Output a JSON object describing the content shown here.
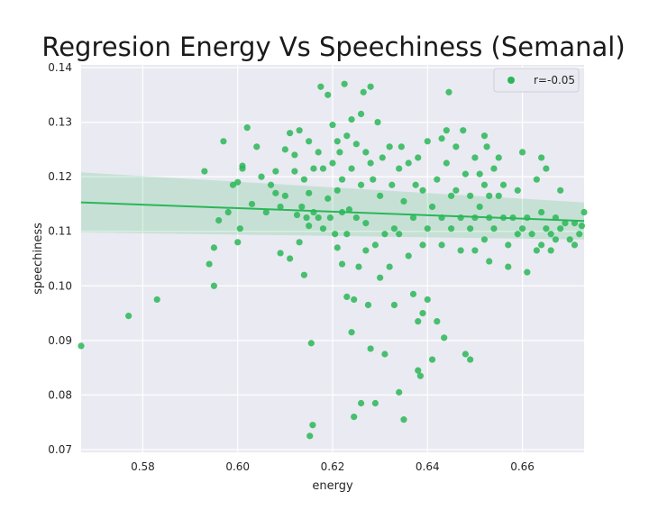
{
  "chart_data": {
    "type": "scatter",
    "title": "Regresion Energy Vs Speechiness (Semanal)",
    "xlabel": "energy",
    "ylabel": "speechiness",
    "xlim": [
      0.567,
      0.673
    ],
    "ylim": [
      0.0695,
      0.1405
    ],
    "xticks": [
      0.58,
      0.6,
      0.62,
      0.64,
      0.66
    ],
    "xtick_labels": [
      "0.58",
      "0.60",
      "0.62",
      "0.64",
      "0.66"
    ],
    "yticks": [
      0.07,
      0.08,
      0.09,
      0.1,
      0.11,
      0.12,
      0.13,
      0.14
    ],
    "ytick_labels": [
      "0.07",
      "0.08",
      "0.09",
      "0.10",
      "0.11",
      "0.12",
      "0.13",
      "0.14"
    ],
    "grid": true,
    "legend_position": "top-right",
    "series": [
      {
        "name": "r=-0.05",
        "color": "#2ab757",
        "points": [
          [
            0.567,
            0.089
          ],
          [
            0.577,
            0.0945
          ],
          [
            0.583,
            0.0975
          ],
          [
            0.593,
            0.121
          ],
          [
            0.594,
            0.104
          ],
          [
            0.595,
            0.107
          ],
          [
            0.595,
            0.1
          ],
          [
            0.596,
            0.112
          ],
          [
            0.597,
            0.1265
          ],
          [
            0.598,
            0.1135
          ],
          [
            0.599,
            0.1185
          ],
          [
            0.6,
            0.119
          ],
          [
            0.6005,
            0.1105
          ],
          [
            0.6,
            0.108
          ],
          [
            0.601,
            0.1215
          ],
          [
            0.601,
            0.122
          ],
          [
            0.602,
            0.129
          ],
          [
            0.603,
            0.115
          ],
          [
            0.604,
            0.1255
          ],
          [
            0.605,
            0.12
          ],
          [
            0.606,
            0.1135
          ],
          [
            0.607,
            0.1185
          ],
          [
            0.608,
            0.121
          ],
          [
            0.608,
            0.117
          ],
          [
            0.609,
            0.106
          ],
          [
            0.609,
            0.1145
          ],
          [
            0.61,
            0.125
          ],
          [
            0.61,
            0.1165
          ],
          [
            0.611,
            0.128
          ],
          [
            0.611,
            0.105
          ],
          [
            0.612,
            0.121
          ],
          [
            0.612,
            0.124
          ],
          [
            0.6125,
            0.113
          ],
          [
            0.613,
            0.1285
          ],
          [
            0.613,
            0.108
          ],
          [
            0.6135,
            0.1145
          ],
          [
            0.614,
            0.1195
          ],
          [
            0.614,
            0.102
          ],
          [
            0.6145,
            0.1125
          ],
          [
            0.615,
            0.1265
          ],
          [
            0.615,
            0.111
          ],
          [
            0.615,
            0.117
          ],
          [
            0.6155,
            0.0895
          ],
          [
            0.6158,
            0.0745
          ],
          [
            0.6152,
            0.0725
          ],
          [
            0.616,
            0.1215
          ],
          [
            0.616,
            0.1135
          ],
          [
            0.617,
            0.1245
          ],
          [
            0.617,
            0.1125
          ],
          [
            0.6175,
            0.1365
          ],
          [
            0.618,
            0.1215
          ],
          [
            0.618,
            0.1105
          ],
          [
            0.619,
            0.135
          ],
          [
            0.619,
            0.116
          ],
          [
            0.6195,
            0.1125
          ],
          [
            0.62,
            0.1295
          ],
          [
            0.62,
            0.1225
          ],
          [
            0.6205,
            0.1095
          ],
          [
            0.621,
            0.1265
          ],
          [
            0.621,
            0.1175
          ],
          [
            0.621,
            0.107
          ],
          [
            0.6215,
            0.1245
          ],
          [
            0.622,
            0.1135
          ],
          [
            0.622,
            0.104
          ],
          [
            0.622,
            0.1195
          ],
          [
            0.6225,
            0.137
          ],
          [
            0.623,
            0.1275
          ],
          [
            0.623,
            0.1095
          ],
          [
            0.623,
            0.098
          ],
          [
            0.6235,
            0.114
          ],
          [
            0.624,
            0.1305
          ],
          [
            0.624,
            0.1215
          ],
          [
            0.624,
            0.0915
          ],
          [
            0.6245,
            0.0975
          ],
          [
            0.6245,
            0.076
          ],
          [
            0.625,
            0.126
          ],
          [
            0.625,
            0.1125
          ],
          [
            0.6255,
            0.1035
          ],
          [
            0.626,
            0.1315
          ],
          [
            0.626,
            0.1185
          ],
          [
            0.626,
            0.0785
          ],
          [
            0.6265,
            0.1355
          ],
          [
            0.627,
            0.1245
          ],
          [
            0.627,
            0.1115
          ],
          [
            0.627,
            0.1065
          ],
          [
            0.6275,
            0.0965
          ],
          [
            0.628,
            0.1365
          ],
          [
            0.628,
            0.1225
          ],
          [
            0.628,
            0.0885
          ],
          [
            0.6285,
            0.1195
          ],
          [
            0.629,
            0.1075
          ],
          [
            0.629,
            0.0785
          ],
          [
            0.6295,
            0.13
          ],
          [
            0.63,
            0.1165
          ],
          [
            0.63,
            0.1015
          ],
          [
            0.6305,
            0.1235
          ],
          [
            0.631,
            0.1095
          ],
          [
            0.631,
            0.0875
          ],
          [
            0.632,
            0.1255
          ],
          [
            0.632,
            0.1035
          ],
          [
            0.6325,
            0.1185
          ],
          [
            0.633,
            0.1105
          ],
          [
            0.633,
            0.0965
          ],
          [
            0.634,
            0.1215
          ],
          [
            0.634,
            0.1095
          ],
          [
            0.634,
            0.0805
          ],
          [
            0.6345,
            0.1255
          ],
          [
            0.635,
            0.1155
          ],
          [
            0.635,
            0.0755
          ],
          [
            0.636,
            0.1225
          ],
          [
            0.636,
            0.1055
          ],
          [
            0.637,
            0.1125
          ],
          [
            0.637,
            0.0985
          ],
          [
            0.6375,
            0.1185
          ],
          [
            0.638,
            0.1235
          ],
          [
            0.638,
            0.0935
          ],
          [
            0.638,
            0.0845
          ],
          [
            0.6385,
            0.0835
          ],
          [
            0.639,
            0.1175
          ],
          [
            0.639,
            0.1075
          ],
          [
            0.639,
            0.095
          ],
          [
            0.64,
            0.1265
          ],
          [
            0.64,
            0.1105
          ],
          [
            0.64,
            0.0975
          ],
          [
            0.641,
            0.1145
          ],
          [
            0.641,
            0.0865
          ],
          [
            0.642,
            0.1195
          ],
          [
            0.642,
            0.0935
          ],
          [
            0.643,
            0.127
          ],
          [
            0.643,
            0.1125
          ],
          [
            0.643,
            0.1075
          ],
          [
            0.6435,
            0.0905
          ],
          [
            0.644,
            0.1285
          ],
          [
            0.644,
            0.1225
          ],
          [
            0.6445,
            0.1355
          ],
          [
            0.645,
            0.1165
          ],
          [
            0.645,
            0.1105
          ],
          [
            0.646,
            0.1255
          ],
          [
            0.646,
            0.1175
          ],
          [
            0.647,
            0.1125
          ],
          [
            0.647,
            0.1065
          ],
          [
            0.6475,
            0.1285
          ],
          [
            0.648,
            0.1205
          ],
          [
            0.648,
            0.0875
          ],
          [
            0.649,
            0.1165
          ],
          [
            0.649,
            0.1105
          ],
          [
            0.649,
            0.0865
          ],
          [
            0.65,
            0.1235
          ],
          [
            0.65,
            0.1125
          ],
          [
            0.65,
            0.1065
          ],
          [
            0.651,
            0.1205
          ],
          [
            0.651,
            0.1145
          ],
          [
            0.652,
            0.1275
          ],
          [
            0.652,
            0.1185
          ],
          [
            0.652,
            0.1085
          ],
          [
            0.6525,
            0.1255
          ],
          [
            0.653,
            0.1165
          ],
          [
            0.653,
            0.1125
          ],
          [
            0.653,
            0.1045
          ],
          [
            0.654,
            0.1215
          ],
          [
            0.654,
            0.1105
          ],
          [
            0.655,
            0.1235
          ],
          [
            0.655,
            0.1165
          ],
          [
            0.656,
            0.1185
          ],
          [
            0.656,
            0.1125
          ],
          [
            0.657,
            0.1075
          ],
          [
            0.657,
            0.1035
          ],
          [
            0.658,
            0.1125
          ],
          [
            0.659,
            0.1175
          ],
          [
            0.659,
            0.1095
          ],
          [
            0.66,
            0.1245
          ],
          [
            0.66,
            0.1105
          ],
          [
            0.661,
            0.1125
          ],
          [
            0.661,
            0.1025
          ],
          [
            0.662,
            0.1095
          ],
          [
            0.663,
            0.1065
          ],
          [
            0.663,
            0.1195
          ],
          [
            0.664,
            0.1235
          ],
          [
            0.664,
            0.1135
          ],
          [
            0.664,
            0.1075
          ],
          [
            0.665,
            0.1215
          ],
          [
            0.665,
            0.1105
          ],
          [
            0.666,
            0.1095
          ],
          [
            0.666,
            0.1065
          ],
          [
            0.667,
            0.1125
          ],
          [
            0.667,
            0.1085
          ],
          [
            0.668,
            0.1175
          ],
          [
            0.668,
            0.1105
          ],
          [
            0.669,
            0.1115
          ],
          [
            0.67,
            0.1085
          ],
          [
            0.671,
            0.1075
          ],
          [
            0.671,
            0.1115
          ],
          [
            0.672,
            0.1095
          ],
          [
            0.673,
            0.1135
          ],
          [
            0.6725,
            0.111
          ]
        ]
      }
    ],
    "regression": {
      "color": "#2ab757",
      "x": [
        0.567,
        0.673
      ],
      "y": [
        0.1153,
        0.1119
      ],
      "ci_lower": [
        0.1098,
        0.1085
      ],
      "ci_upper": [
        0.1208,
        0.1153
      ]
    }
  }
}
